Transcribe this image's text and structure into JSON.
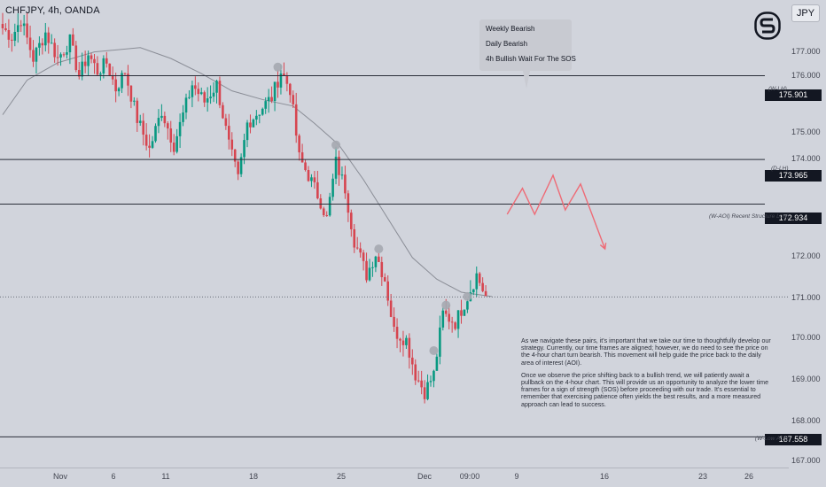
{
  "header": {
    "symbol": "CHFJPY, 4h, OANDA",
    "currency": "JPY"
  },
  "logo": {
    "icon": "s-brand-logo"
  },
  "tooltip": {
    "lines": [
      "Weekly Bearish",
      "Daily Bearish",
      "4h Bullish Wait For The SOS"
    ]
  },
  "levels": [
    {
      "tag": "(W-LH)",
      "price": "175.901",
      "value": 175.901
    },
    {
      "tag": "(D-LH)",
      "price": "173.965",
      "value": 173.965
    },
    {
      "tag": "(W-AOI) Recent Structure Low)",
      "price": "172.934",
      "value": 172.934
    },
    {
      "tag": "(W-Low AOI)",
      "price": "167.558",
      "value": 167.558
    }
  ],
  "note": {
    "paragraph_1": "As we navigate these pairs, it's important that we take our time to thoughtfully develop our strategy. Currently, our time frames are aligned; however, we do need to see the price on the 4-hour chart turn bearish. This movement will help guide the price back to the daily area of interest (AOI).",
    "paragraph_2": "Once we observe the price shifting back to a bullish trend, we will patiently await a pullback on the 4-hour chart. This will provide us an opportunity to analyze the lower time frames for a sign of strength (SOS) before proceeding with our trade. It's essential to remember that exercising patience often yields the best results, and a more measured approach can lead to success."
  },
  "colors": {
    "background": "#d1d4dc",
    "bull": "#089981",
    "bear": "#d64550",
    "projection": "#ee6b76",
    "level_line": "#2a2e39",
    "ma": "#8a8d96"
  },
  "chart_data": {
    "type": "candlestick",
    "symbol": "CHFJPY",
    "timeframe": "4h",
    "ylim": [
      166.85,
      177.65
    ],
    "y_ticks": [
      "177.000",
      "176.000",
      "175.000",
      "174.000",
      "172.000",
      "171.000",
      "170.000",
      "169.000",
      "168.000",
      "167.000"
    ],
    "y_tick_values": [
      177,
      176,
      175,
      174,
      172,
      171,
      170,
      169,
      168,
      167
    ],
    "x_ticks": [
      "Nov",
      "6",
      "11",
      "18",
      "25",
      "Dec",
      "09:00",
      "9",
      "16",
      "23",
      "26"
    ],
    "x_tick_bars": [
      10,
      30,
      50,
      80,
      107,
      130,
      145,
      161,
      187,
      218,
      233
    ],
    "current_price": 170.79,
    "horizontal_levels": [
      175.901,
      173.965,
      172.934,
      167.558
    ],
    "swing_markers": [
      {
        "bar": 90,
        "price": 176.1
      },
      {
        "bar": 109,
        "price": 174.3
      },
      {
        "bar": 123,
        "price": 171.9
      },
      {
        "bar": 141,
        "price": 169.55
      },
      {
        "bar": 145,
        "price": 170.6
      },
      {
        "bar": 152,
        "price": 170.8
      }
    ],
    "moving_average": [
      [
        0,
        175.0
      ],
      [
        8,
        175.8
      ],
      [
        18,
        176.2
      ],
      [
        30,
        176.45
      ],
      [
        45,
        176.55
      ],
      [
        55,
        176.3
      ],
      [
        65,
        175.95
      ],
      [
        75,
        175.55
      ],
      [
        85,
        175.35
      ],
      [
        95,
        175.2
      ],
      [
        102,
        174.8
      ],
      [
        110,
        174.3
      ],
      [
        118,
        173.5
      ],
      [
        126,
        172.6
      ],
      [
        134,
        171.7
      ],
      [
        142,
        171.2
      ],
      [
        150,
        170.9
      ],
      [
        160,
        170.8
      ]
    ],
    "projection_path": [
      [
        165,
        172.7
      ],
      [
        170,
        173.3
      ],
      [
        174,
        172.7
      ],
      [
        180,
        173.6
      ],
      [
        184,
        172.8
      ],
      [
        189,
        173.4
      ],
      [
        197,
        171.9
      ]
    ],
    "anchors": [
      [
        0,
        177.0
      ],
      [
        3,
        176.8
      ],
      [
        6,
        177.2
      ],
      [
        10,
        176.3
      ],
      [
        14,
        176.9
      ],
      [
        18,
        176.3
      ],
      [
        22,
        176.7
      ],
      [
        25,
        175.9
      ],
      [
        28,
        176.4
      ],
      [
        31,
        176.0
      ],
      [
        34,
        176.2
      ],
      [
        37,
        175.6
      ],
      [
        40,
        176.0
      ],
      [
        44,
        174.9
      ],
      [
        48,
        174.2
      ],
      [
        52,
        175.1
      ],
      [
        56,
        174.3
      ],
      [
        59,
        175.0
      ],
      [
        62,
        175.7
      ],
      [
        66,
        175.3
      ],
      [
        70,
        175.7
      ],
      [
        74,
        174.3
      ],
      [
        77,
        173.5
      ],
      [
        80,
        174.8
      ],
      [
        84,
        175.1
      ],
      [
        88,
        175.4
      ],
      [
        91,
        176.0
      ],
      [
        94,
        175.6
      ],
      [
        97,
        174.0
      ],
      [
        100,
        173.6
      ],
      [
        104,
        173.0
      ],
      [
        106,
        172.6
      ],
      [
        109,
        173.9
      ],
      [
        112,
        173.3
      ],
      [
        115,
        172.1
      ],
      [
        119,
        171.3
      ],
      [
        122,
        171.8
      ],
      [
        125,
        171.2
      ],
      [
        128,
        170.0
      ],
      [
        132,
        169.8
      ],
      [
        135,
        169.0
      ],
      [
        138,
        168.6
      ],
      [
        141,
        169.0
      ],
      [
        144,
        170.4
      ],
      [
        148,
        170.2
      ],
      [
        152,
        170.8
      ],
      [
        155,
        171.3
      ],
      [
        158,
        170.8
      ]
    ]
  }
}
